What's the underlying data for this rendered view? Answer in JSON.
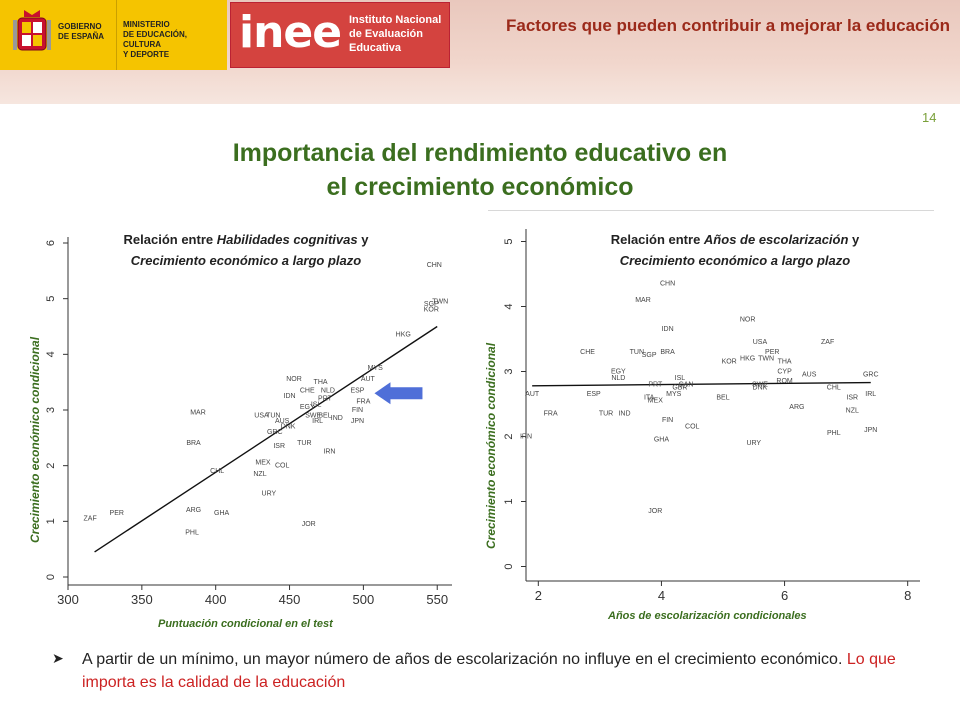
{
  "header": {
    "gov_text": "GOBIERNO\nDE ESPAÑA",
    "ministry_text": "MINISTERIO\nDE EDUCACIÓN, CULTURA\nY DEPORTE",
    "inee_word": "inee",
    "inee_full": "Instituto Nacional\nde Evaluación\nEducativa",
    "title": "Factores que pueden contribuir a mejorar la educación",
    "colors": {
      "band": "#ecccc2",
      "gov_yellow": "#f5c400",
      "inee_red": "#d4433f",
      "title": "#9b2a1a"
    }
  },
  "page_number": "14",
  "slide_title": {
    "line1": "Importancia del rendimiento educativo en",
    "line2": "el crecimiento económico",
    "color": "#3b6e1f"
  },
  "chart_left": {
    "title_pre": "Relación entre ",
    "title_italic1": "Habilidades cognitivas",
    "title_mid": " y",
    "title_line2": "Crecimiento económico a largo plazo",
    "ylabel": "Crecimiento económico condicional",
    "xlabel": "Puntuación condicional en el test"
  },
  "chart_right": {
    "title_pre": "Relación entre ",
    "title_italic1": "Años de escolarización",
    "title_mid": " y",
    "title_line2": "Crecimiento económico a largo plazo",
    "ylabel": "Crecimiento económico condicional",
    "xlabel": "Años de escolarización condicionales"
  },
  "chart_data": [
    {
      "type": "scatter",
      "xlim": [
        300,
        560
      ],
      "ylim": [
        0,
        6
      ],
      "xticks": [
        300,
        350,
        400,
        450,
        500,
        550
      ],
      "yticks": [
        0,
        1,
        2,
        3,
        4,
        5,
        6
      ],
      "fit_line": [
        [
          318,
          0.45
        ],
        [
          550,
          4.5
        ]
      ],
      "points": [
        {
          "label": "CHN",
          "x": 548,
          "y": 5.6
        },
        {
          "label": "TWN",
          "x": 552,
          "y": 4.95
        },
        {
          "label": "SGP",
          "x": 546,
          "y": 4.9
        },
        {
          "label": "KOR",
          "x": 546,
          "y": 4.8
        },
        {
          "label": "HKG",
          "x": 527,
          "y": 4.35
        },
        {
          "label": "MYS",
          "x": 508,
          "y": 3.75
        },
        {
          "label": "AUT",
          "x": 503,
          "y": 3.55
        },
        {
          "label": "THA",
          "x": 471,
          "y": 3.5
        },
        {
          "label": "NOR",
          "x": 453,
          "y": 3.55
        },
        {
          "label": "ESP",
          "x": 496,
          "y": 3.35
        },
        {
          "label": "CHE",
          "x": 462,
          "y": 3.35
        },
        {
          "label": "NLD",
          "x": 476,
          "y": 3.35
        },
        {
          "label": "IDN",
          "x": 450,
          "y": 3.25
        },
        {
          "label": "PRT",
          "x": 474,
          "y": 3.2
        },
        {
          "label": "FRA",
          "x": 500,
          "y": 3.15
        },
        {
          "label": "ISL",
          "x": 468,
          "y": 3.1
        },
        {
          "label": "EGY",
          "x": 462,
          "y": 3.05
        },
        {
          "label": "FIN",
          "x": 496,
          "y": 3.0
        },
        {
          "label": "MAR",
          "x": 388,
          "y": 2.95
        },
        {
          "label": "USA",
          "x": 431,
          "y": 2.9
        },
        {
          "label": "TUN",
          "x": 439,
          "y": 2.9
        },
        {
          "label": "SWE",
          "x": 466,
          "y": 2.9
        },
        {
          "label": "BEL",
          "x": 474,
          "y": 2.9
        },
        {
          "label": "IND",
          "x": 482,
          "y": 2.85
        },
        {
          "label": "JPN",
          "x": 496,
          "y": 2.8
        },
        {
          "label": "AUS",
          "x": 445,
          "y": 2.8
        },
        {
          "label": "IRL",
          "x": 469,
          "y": 2.8
        },
        {
          "label": "DNK",
          "x": 449,
          "y": 2.7
        },
        {
          "label": "GRC",
          "x": 440,
          "y": 2.6
        },
        {
          "label": "BRA",
          "x": 385,
          "y": 2.4
        },
        {
          "label": "ISR",
          "x": 443,
          "y": 2.35
        },
        {
          "label": "TUR",
          "x": 460,
          "y": 2.4
        },
        {
          "label": "IRN",
          "x": 477,
          "y": 2.25
        },
        {
          "label": "MEX",
          "x": 432,
          "y": 2.05
        },
        {
          "label": "COL",
          "x": 445,
          "y": 2.0
        },
        {
          "label": "CHL",
          "x": 401,
          "y": 1.9
        },
        {
          "label": "NZL",
          "x": 430,
          "y": 1.85
        },
        {
          "label": "URY",
          "x": 436,
          "y": 1.5
        },
        {
          "label": "ARG",
          "x": 385,
          "y": 1.2
        },
        {
          "label": "GHA",
          "x": 404,
          "y": 1.15
        },
        {
          "label": "PER",
          "x": 333,
          "y": 1.15
        },
        {
          "label": "ZAF",
          "x": 315,
          "y": 1.05
        },
        {
          "label": "JOR",
          "x": 463,
          "y": 0.95
        },
        {
          "label": "PHL",
          "x": 384,
          "y": 0.8
        }
      ]
    },
    {
      "type": "scatter",
      "xlim": [
        1.8,
        8.2
      ],
      "ylim": [
        -0.1,
        5.1
      ],
      "xticks": [
        2,
        4,
        6,
        8
      ],
      "yticks": [
        0,
        1,
        2,
        3,
        4,
        5
      ],
      "fit_line": [
        [
          1.9,
          2.78
        ],
        [
          7.4,
          2.83
        ]
      ],
      "points": [
        {
          "label": "CHN",
          "x": 4.1,
          "y": 4.35
        },
        {
          "label": "MAR",
          "x": 3.7,
          "y": 4.1
        },
        {
          "label": "NOR",
          "x": 5.4,
          "y": 3.8
        },
        {
          "label": "IDN",
          "x": 4.1,
          "y": 3.65
        },
        {
          "label": "USA",
          "x": 5.6,
          "y": 3.45
        },
        {
          "label": "ZAF",
          "x": 6.7,
          "y": 3.45
        },
        {
          "label": "CHE",
          "x": 2.8,
          "y": 3.3
        },
        {
          "label": "TUN",
          "x": 3.6,
          "y": 3.3
        },
        {
          "label": "SGP",
          "x": 3.8,
          "y": 3.25
        },
        {
          "label": "BRA",
          "x": 4.1,
          "y": 3.3
        },
        {
          "label": "PER",
          "x": 5.8,
          "y": 3.3
        },
        {
          "label": "HKG",
          "x": 5.4,
          "y": 3.2
        },
        {
          "label": "TWN",
          "x": 5.7,
          "y": 3.2
        },
        {
          "label": "KOR",
          "x": 5.1,
          "y": 3.15
        },
        {
          "label": "THA",
          "x": 6.0,
          "y": 3.15
        },
        {
          "label": "EGY",
          "x": 3.3,
          "y": 3.0
        },
        {
          "label": "CYP",
          "x": 6.0,
          "y": 3.0
        },
        {
          "label": "AUS",
          "x": 6.4,
          "y": 2.95
        },
        {
          "label": "GRC",
          "x": 7.4,
          "y": 2.95
        },
        {
          "label": "NLD",
          "x": 3.3,
          "y": 2.9
        },
        {
          "label": "ISL",
          "x": 4.3,
          "y": 2.9
        },
        {
          "label": "ROM",
          "x": 6.0,
          "y": 2.85
        },
        {
          "label": "PRT",
          "x": 3.9,
          "y": 2.8
        },
        {
          "label": "CAN",
          "x": 4.4,
          "y": 2.8
        },
        {
          "label": "SWE",
          "x": 5.6,
          "y": 2.8
        },
        {
          "label": "GBR",
          "x": 4.3,
          "y": 2.75
        },
        {
          "label": "CHL",
          "x": 6.8,
          "y": 2.75
        },
        {
          "label": "DNK",
          "x": 5.6,
          "y": 2.75
        },
        {
          "label": "MYS",
          "x": 4.2,
          "y": 2.65
        },
        {
          "label": "AUT",
          "x": 1.9,
          "y": 2.65
        },
        {
          "label": "ESP",
          "x": 2.9,
          "y": 2.65
        },
        {
          "label": "IRL",
          "x": 7.4,
          "y": 2.65
        },
        {
          "label": "ISR",
          "x": 7.1,
          "y": 2.6
        },
        {
          "label": "ITA",
          "x": 3.8,
          "y": 2.6
        },
        {
          "label": "BEL",
          "x": 5.0,
          "y": 2.6
        },
        {
          "label": "MEX",
          "x": 3.9,
          "y": 2.55
        },
        {
          "label": "ARG",
          "x": 6.2,
          "y": 2.45
        },
        {
          "label": "NZL",
          "x": 7.1,
          "y": 2.4
        },
        {
          "label": "FRA",
          "x": 2.2,
          "y": 2.35
        },
        {
          "label": "TUR",
          "x": 3.1,
          "y": 2.35
        },
        {
          "label": "IND",
          "x": 3.4,
          "y": 2.35
        },
        {
          "label": "FIN",
          "x": 4.1,
          "y": 2.25
        },
        {
          "label": "COL",
          "x": 4.5,
          "y": 2.15
        },
        {
          "label": "PHL",
          "x": 6.8,
          "y": 2.05
        },
        {
          "label": "JPN",
          "x": 7.4,
          "y": 2.1
        },
        {
          "label": "IRN",
          "x": 1.8,
          "y": 2.0
        },
        {
          "label": "GHA",
          "x": 4.0,
          "y": 1.95
        },
        {
          "label": "URY",
          "x": 5.5,
          "y": 1.9
        },
        {
          "label": "JOR",
          "x": 3.9,
          "y": 0.85
        }
      ]
    }
  ],
  "bullet": {
    "text": "A partir de un mínimo, un mayor número de años de escolarización no influye en el crecimiento económico. ",
    "highlight": "Lo que importa es la calidad de la educación"
  }
}
